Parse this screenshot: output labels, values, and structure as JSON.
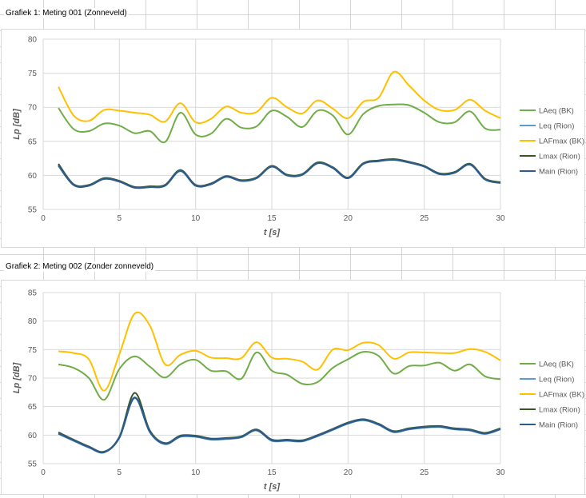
{
  "captions": {
    "chart1": "Grafiek 1: Meting 001 (Zonneveld)",
    "chart2": "Grafiek 2: Meting 002 (Zonder zonneveld)"
  },
  "chart_data": [
    {
      "type": "line",
      "title": "Grafiek 1: Meting 001 (Zonneveld)",
      "xlabel": "t [s]",
      "ylabel": "Lp [dB]",
      "xlim": [
        0,
        30
      ],
      "ylim": [
        55,
        80
      ],
      "xticks": [
        0,
        5,
        10,
        15,
        20,
        25,
        30
      ],
      "yticks": [
        55,
        60,
        65,
        70,
        75,
        80
      ],
      "grid": true,
      "legend_position": "right",
      "x": [
        1,
        2,
        3,
        4,
        5,
        6,
        7,
        8,
        9,
        10,
        11,
        12,
        13,
        14,
        15,
        16,
        17,
        18,
        19,
        20,
        21,
        22,
        23,
        24,
        25,
        26,
        27,
        28,
        29,
        30
      ],
      "series": [
        {
          "name": "LAeq (BK)",
          "color": "#70AD47",
          "values": [
            69.9,
            66.8,
            66.5,
            67.6,
            67.3,
            66.2,
            66.5,
            64.9,
            69.2,
            66.0,
            66.1,
            68.3,
            67.0,
            67.2,
            69.5,
            68.6,
            67.1,
            69.5,
            68.8,
            66.0,
            69.0,
            70.2,
            70.4,
            70.3,
            69.2,
            67.8,
            67.8,
            69.4,
            66.9,
            66.7
          ]
        },
        {
          "name": "Leq (Rion)",
          "color": "#5B9BD5",
          "values": [
            61.4,
            58.6,
            58.5,
            59.5,
            59.1,
            58.2,
            58.3,
            58.5,
            60.6,
            58.5,
            58.7,
            59.8,
            59.2,
            59.6,
            61.3,
            60.0,
            60.1,
            61.8,
            61.1,
            59.6,
            61.7,
            62.1,
            62.3,
            61.9,
            61.3,
            60.2,
            60.4,
            61.6,
            59.4,
            58.9
          ]
        },
        {
          "name": "LAFmax (BK)",
          "color": "#FFC000",
          "values": [
            73.0,
            68.8,
            68.0,
            69.6,
            69.5,
            69.2,
            68.9,
            67.9,
            70.6,
            67.8,
            68.3,
            70.1,
            69.2,
            69.3,
            71.4,
            70.0,
            69.1,
            71.0,
            69.8,
            68.4,
            70.8,
            71.4,
            75.2,
            73.2,
            71.0,
            69.6,
            69.6,
            71.1,
            69.5,
            68.4
          ]
        },
        {
          "name": "Lmax (Rion)",
          "color": "#375623",
          "values": [
            61.7,
            58.7,
            58.6,
            59.6,
            59.2,
            58.3,
            58.4,
            58.6,
            60.8,
            58.6,
            58.8,
            59.9,
            59.3,
            59.7,
            61.4,
            60.1,
            60.2,
            61.9,
            61.2,
            59.7,
            61.8,
            62.2,
            62.4,
            62.0,
            61.4,
            60.3,
            60.5,
            61.7,
            59.5,
            59.0
          ]
        },
        {
          "name": "Main (Rion)",
          "color": "#2E5C8A",
          "values": [
            61.5,
            58.6,
            58.5,
            59.5,
            59.1,
            58.2,
            58.3,
            58.5,
            60.7,
            58.5,
            58.7,
            59.8,
            59.2,
            59.6,
            61.3,
            60.0,
            60.1,
            61.8,
            61.1,
            59.6,
            61.7,
            62.1,
            62.3,
            61.9,
            61.3,
            60.2,
            60.4,
            61.6,
            59.4,
            58.9
          ]
        }
      ]
    },
    {
      "type": "line",
      "title": "Grafiek 2: Meting 002 (Zonder zonneveld)",
      "xlabel": "t [s]",
      "ylabel": "Lp [dB]",
      "xlim": [
        0,
        30
      ],
      "ylim": [
        55,
        85
      ],
      "xticks": [
        0,
        5,
        10,
        15,
        20,
        25,
        30
      ],
      "yticks": [
        55,
        60,
        65,
        70,
        75,
        80,
        85
      ],
      "grid": true,
      "legend_position": "right",
      "x": [
        1,
        2,
        3,
        4,
        5,
        6,
        7,
        8,
        9,
        10,
        11,
        12,
        13,
        14,
        15,
        16,
        17,
        18,
        19,
        20,
        21,
        22,
        23,
        24,
        25,
        26,
        27,
        28,
        29,
        30
      ],
      "series": [
        {
          "name": "LAeq (BK)",
          "color": "#70AD47",
          "values": [
            72.4,
            71.8,
            70.0,
            66.2,
            71.6,
            73.8,
            72.0,
            70.1,
            72.4,
            73.2,
            71.3,
            71.2,
            69.9,
            74.5,
            71.3,
            70.6,
            69.0,
            69.3,
            71.8,
            73.3,
            74.6,
            73.9,
            70.8,
            72.1,
            72.2,
            72.7,
            71.3,
            72.4,
            70.3,
            69.8
          ]
        },
        {
          "name": "Leq (Rion)",
          "color": "#5B9BD5",
          "values": [
            60.2,
            59.0,
            57.8,
            57.0,
            59.5,
            66.5,
            60.5,
            58.4,
            59.7,
            59.7,
            59.2,
            59.3,
            59.6,
            60.8,
            59.0,
            59.0,
            58.9,
            59.8,
            60.9,
            62.0,
            62.6,
            61.8,
            60.5,
            61.0,
            61.3,
            61.4,
            61.0,
            60.8,
            60.2,
            61.0
          ]
        },
        {
          "name": "LAFmax (BK)",
          "color": "#FFC000",
          "values": [
            74.7,
            74.4,
            73.3,
            67.8,
            74.2,
            81.3,
            79.2,
            72.4,
            74.1,
            74.8,
            73.6,
            73.5,
            73.5,
            76.3,
            73.6,
            73.4,
            72.9,
            71.5,
            75.0,
            74.9,
            76.2,
            75.8,
            73.4,
            74.5,
            74.5,
            74.4,
            74.4,
            75.1,
            74.6,
            73.1
          ]
        },
        {
          "name": "Lmax (Rion)",
          "color": "#375623",
          "values": [
            60.5,
            59.2,
            58.0,
            57.1,
            59.7,
            67.4,
            60.8,
            58.6,
            59.9,
            59.9,
            59.4,
            59.5,
            59.8,
            61.0,
            59.2,
            59.2,
            59.1,
            60.0,
            61.1,
            62.2,
            62.8,
            62.0,
            60.7,
            61.2,
            61.5,
            61.6,
            61.2,
            61.0,
            60.4,
            61.2
          ]
        },
        {
          "name": "Main (Rion)",
          "color": "#2E5C8A",
          "values": [
            60.3,
            59.1,
            57.9,
            57.0,
            59.6,
            66.6,
            60.6,
            58.5,
            59.8,
            59.8,
            59.3,
            59.4,
            59.7,
            60.9,
            59.1,
            59.1,
            59.0,
            59.9,
            61.0,
            62.1,
            62.7,
            61.9,
            60.6,
            61.1,
            61.4,
            61.5,
            61.1,
            60.9,
            60.3,
            61.1
          ]
        }
      ]
    }
  ]
}
